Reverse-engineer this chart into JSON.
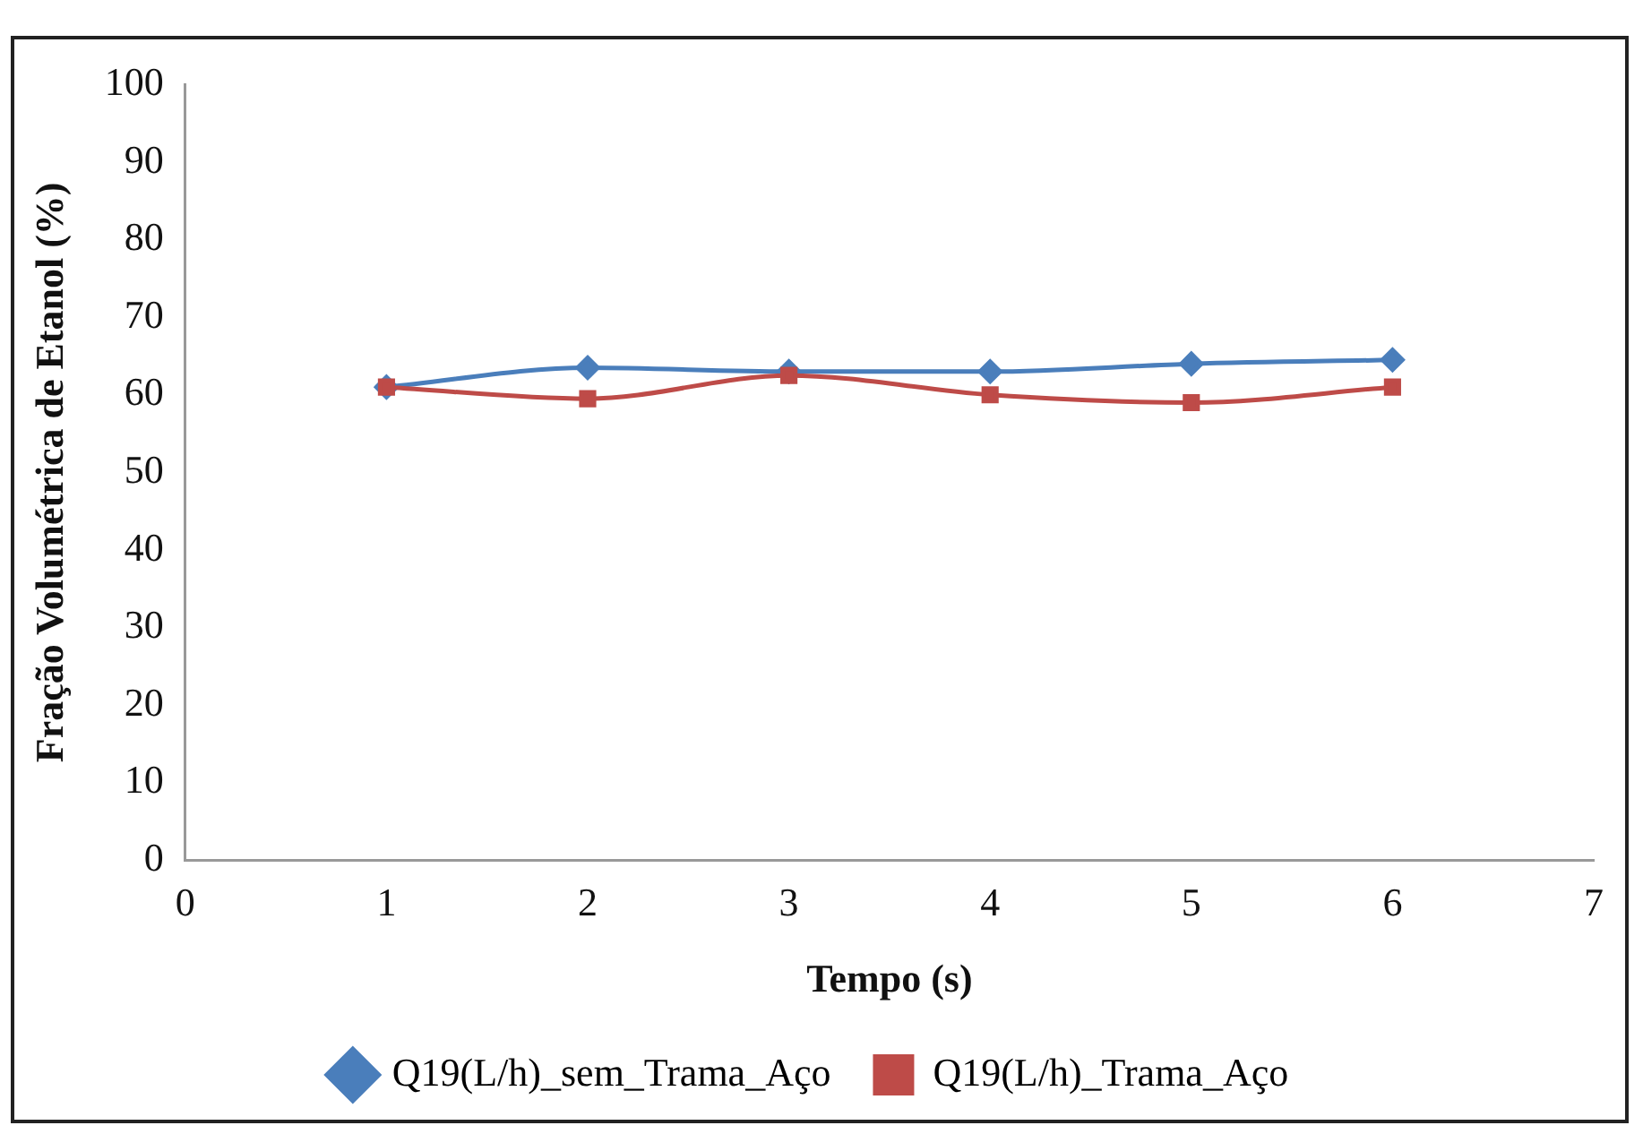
{
  "chart_data": {
    "type": "line",
    "xlabel": "Tempo (s)",
    "ylabel": "Fração Volumétrica de Etanol (%)",
    "x": [
      1,
      2,
      3,
      4,
      5,
      6
    ],
    "series": [
      {
        "name": "Q19(L/h)_sem_Trama_Aço",
        "color": "#4a7ebb",
        "marker": "diamond",
        "values": [
          61,
          63.5,
          63,
          63,
          64,
          64.5
        ]
      },
      {
        "name": "Q19(L/h)_Trama_Aço",
        "color": "#be4b48",
        "marker": "square",
        "values": [
          61,
          59.5,
          62.5,
          60,
          59,
          61
        ]
      }
    ],
    "xlim": [
      0,
      7
    ],
    "xticks": [
      0,
      1,
      2,
      3,
      4,
      5,
      6,
      7
    ],
    "ylim": [
      0,
      100
    ],
    "yticks": [
      0,
      10,
      20,
      30,
      40,
      50,
      60,
      70,
      80,
      90,
      100
    ],
    "grid": false,
    "legend": "bottom",
    "line_style": "solid"
  }
}
